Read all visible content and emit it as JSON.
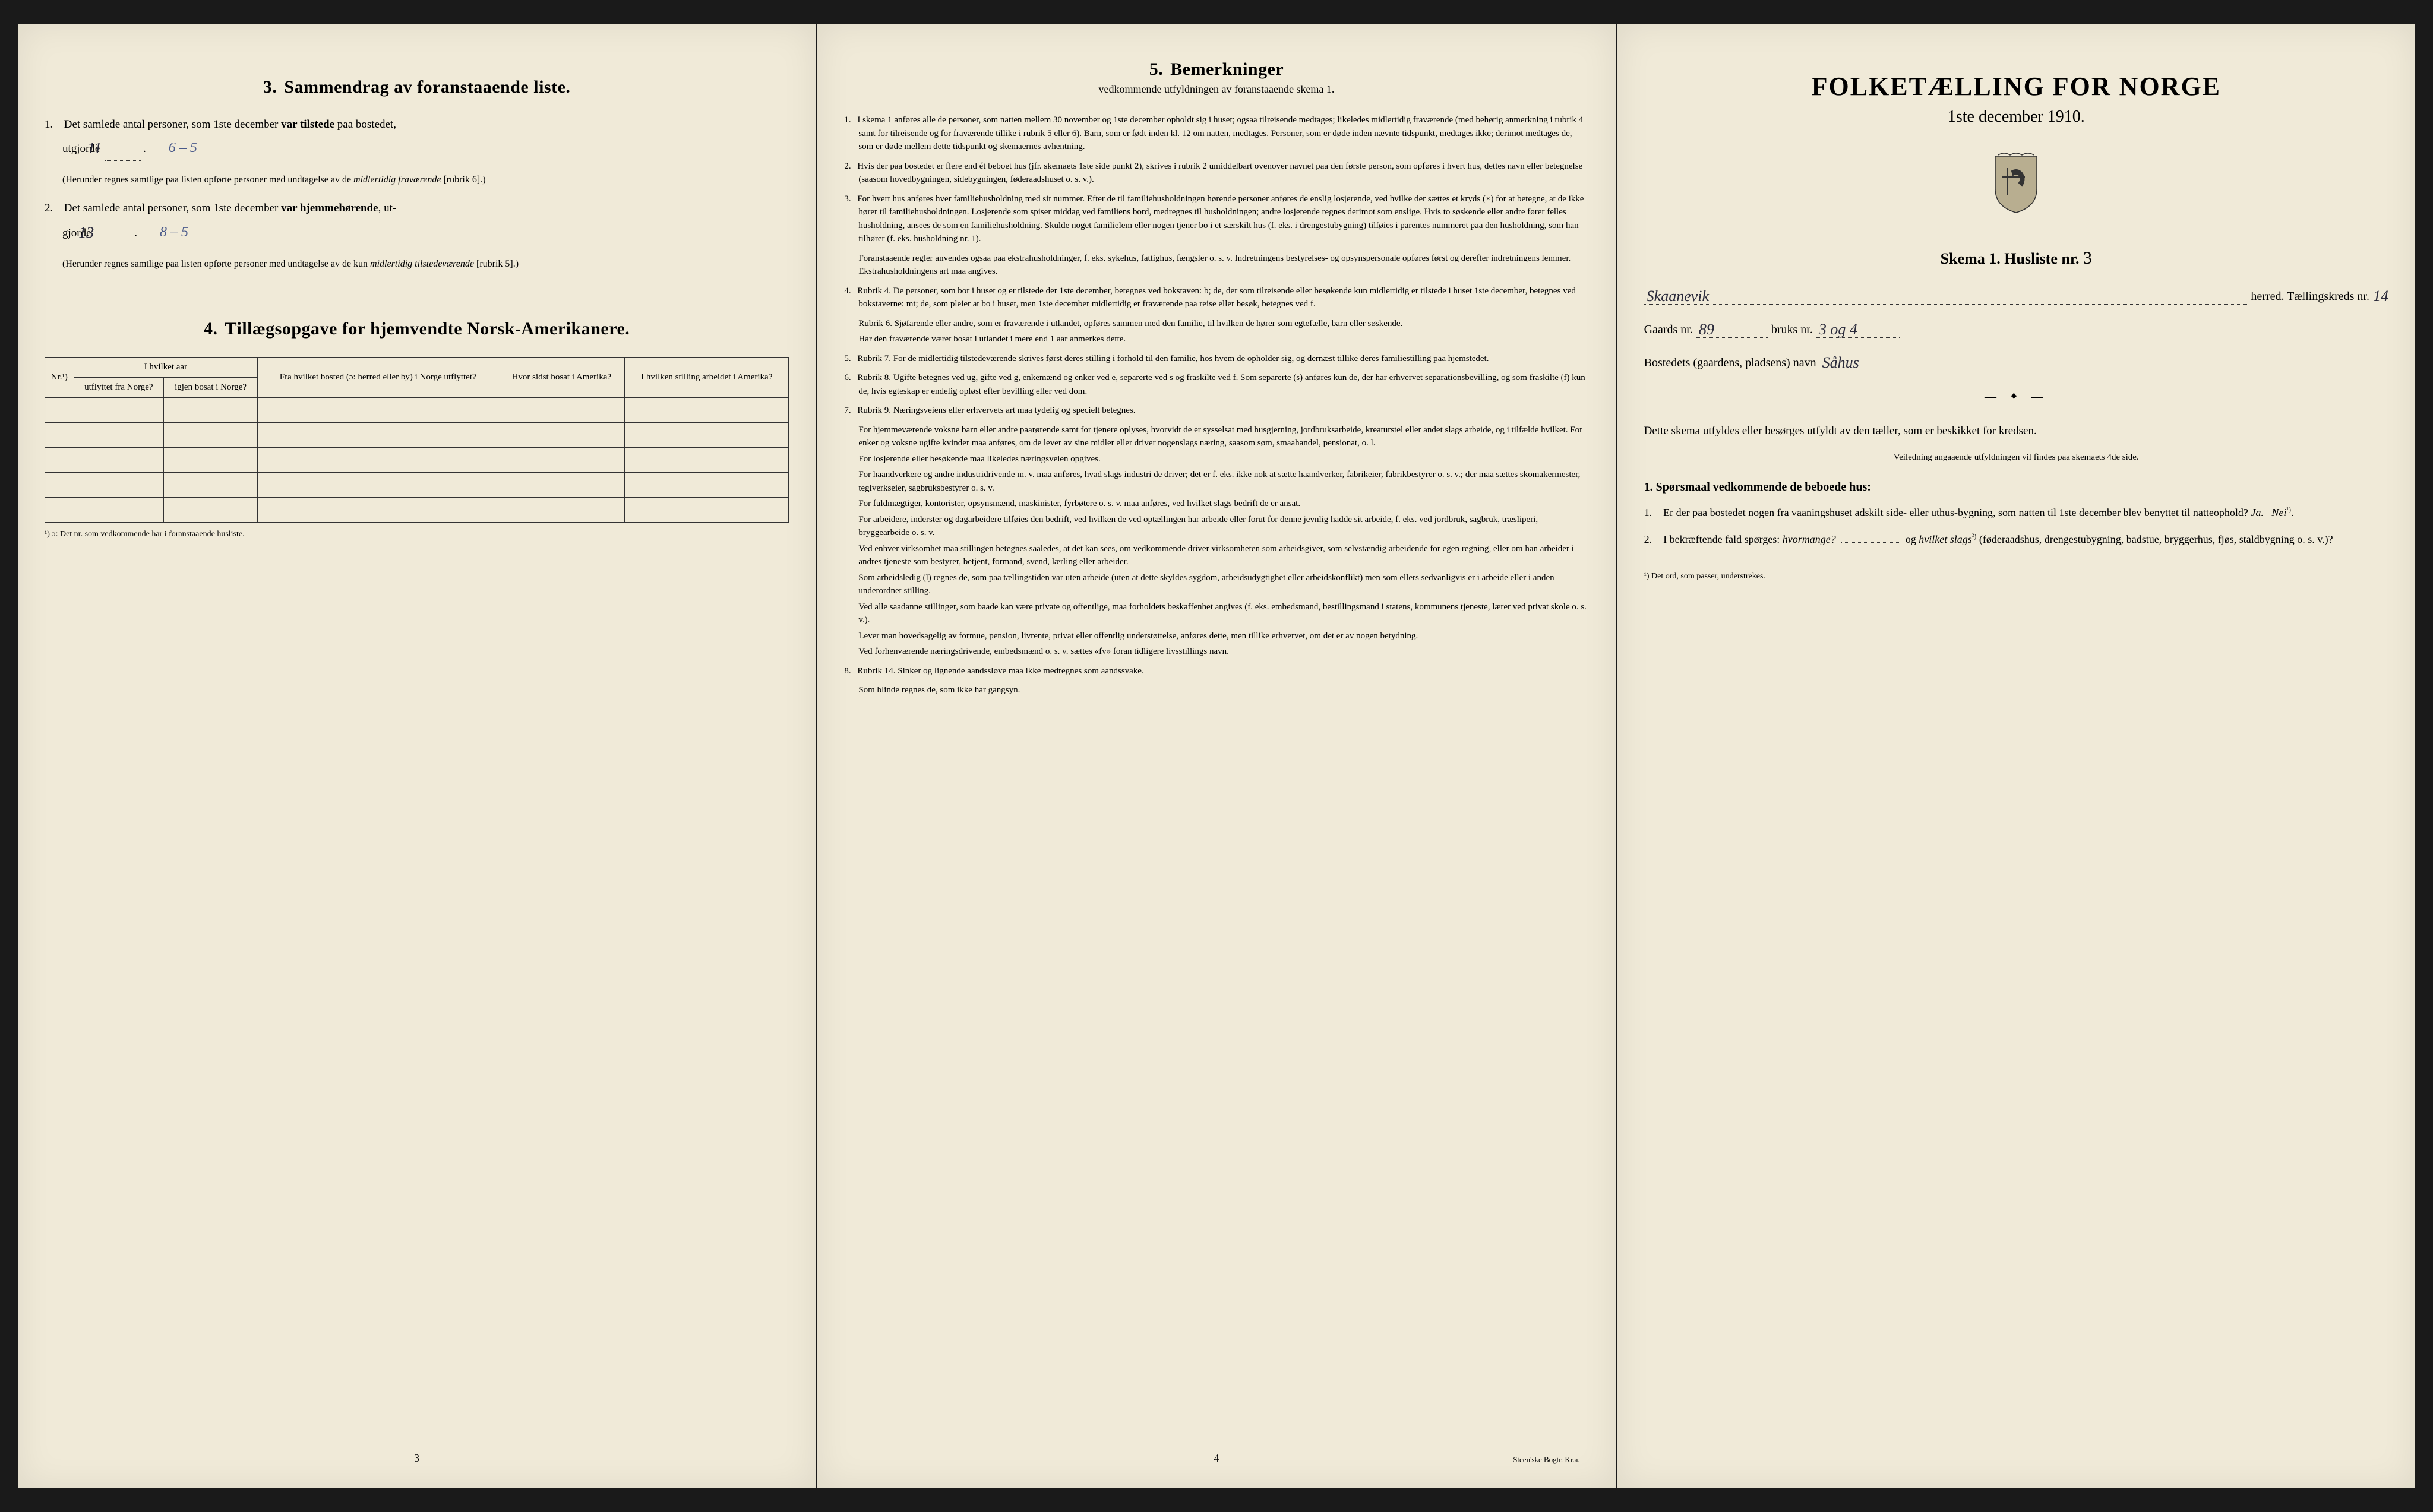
{
  "colors": {
    "paper": "#f0ead8",
    "ink": "#1a1a1a",
    "hand_ink": "#2a2a3a",
    "hand_blue": "#4a5a8a",
    "frame": "#1a1a1a"
  },
  "left": {
    "section3_num": "3.",
    "section3_title": "Sammendrag av foranstaaende liste.",
    "item1_n": "1.",
    "item1_text_a": "Det samlede antal personer, som 1ste december",
    "item1_bold": "var tilstede",
    "item1_text_b": "paa bostedet,",
    "item1_text_c": "utgjorde",
    "item1_value": "11",
    "item1_value2": "6 – 5",
    "item1_paren": "(Herunder regnes samtlige paa listen opførte personer med undtagelse av de ",
    "item1_paren_it": "midlertidig fraværende",
    "item1_paren_end": " [rubrik 6].)",
    "item2_n": "2.",
    "item2_text_a": "Det samlede antal personer, som 1ste december",
    "item2_bold": "var hjemmehørende",
    "item2_text_b": ", ut-",
    "item2_text_c": "gjorde",
    "item2_value": "13",
    "item2_value2": "8 – 5",
    "item2_paren": "(Herunder regnes samtlige paa listen opførte personer med undtagelse av de kun ",
    "item2_paren_it": "midlertidig tilstedeværende",
    "item2_paren_end": " [rubrik 5].)",
    "section4_num": "4.",
    "section4_title": "Tillægsopgave for hjemvendte Norsk-Amerikanere.",
    "table": {
      "col_nr": "Nr.¹)",
      "col_year_header": "I hvilket aar",
      "col_year_a": "utflyttet fra Norge?",
      "col_year_b": "igjen bosat i Norge?",
      "col_from": "Fra hvilket bosted (ɔ: herred eller by) i Norge utflyttet?",
      "col_where": "Hvor sidst bosat i Amerika?",
      "col_pos": "I hvilken stilling arbeidet i Amerika?",
      "empty_rows": 5
    },
    "table_footnote": "¹) ɔ: Det nr. som vedkommende har i foranstaaende husliste.",
    "page_num": "3"
  },
  "middle": {
    "section5_num": "5.",
    "section5_title": "Bemerkninger",
    "section5_sub": "vedkommende utfyldningen av foranstaaende skema 1.",
    "items": [
      {
        "n": "1.",
        "text": "I skema 1 anføres alle de personer, som natten mellem 30 november og 1ste december opholdt sig i huset; ogsaa tilreisende medtages; likeledes midlertidig fraværende (med behørig anmerkning i rubrik 4 samt for tilreisende og for fraværende tillike i rubrik 5 eller 6). Barn, som er født inden kl. 12 om natten, medtages. Personer, som er døde inden nævnte tidspunkt, medtages ikke; derimot medtages de, som er døde mellem dette tidspunkt og skemaernes avhentning."
      },
      {
        "n": "2.",
        "text": "Hvis der paa bostedet er flere end ét beboet hus (jfr. skemaets 1ste side punkt 2), skrives i rubrik 2 umiddelbart ovenover navnet paa den første person, som opføres i hvert hus, dettes navn eller betegnelse (saasom hovedbygningen, sidebygningen, føderaadshuset o. s. v.)."
      },
      {
        "n": "3.",
        "text": "For hvert hus anføres hver familiehusholdning med sit nummer. Efter de til familiehusholdningen hørende personer anføres de enslig losjerende, ved hvilke der sættes et kryds (×) for at betegne, at de ikke hører til familiehusholdningen. Losjerende som spiser middag ved familiens bord, medregnes til husholdningen; andre losjerende regnes derimot som enslige. Hvis to søskende eller andre fører felles husholdning, ansees de som en familiehusholdning. Skulde noget familielem eller nogen tjener bo i et særskilt hus (f. eks. i drengestubygning) tilføies i parentes nummeret paa den husholdning, som han tilhører (f. eks. husholdning nr. 1)."
      },
      {
        "n": "",
        "text": "Foranstaaende regler anvendes ogsaa paa ekstrahusholdninger, f. eks. sykehus, fattighus, fængsler o. s. v. Indretningens bestyrelses- og opsynspersonale opføres først og derefter indretningens lemmer. Ekstrahusholdningens art maa angives.",
        "indent": true
      },
      {
        "n": "4.",
        "text": "Rubrik 4. De personer, som bor i huset og er tilstede der 1ste december, betegnes ved bokstaven: b; de, der som tilreisende eller besøkende kun midlertidig er tilstede i huset 1ste december, betegnes ved bokstaverne: mt; de, som pleier at bo i huset, men 1ste december midlertidig er fraværende paa reise eller besøk, betegnes ved f."
      },
      {
        "n": "",
        "text": "Rubrik 6. Sjøfarende eller andre, som er fraværende i utlandet, opføres sammen med den familie, til hvilken de hører som egtefælle, barn eller søskende.",
        "indent": true
      },
      {
        "n": "",
        "text": "Har den fraværende været bosat i utlandet i mere end 1 aar anmerkes dette.",
        "indent": true
      },
      {
        "n": "5.",
        "text": "Rubrik 7. For de midlertidig tilstedeværende skrives først deres stilling i forhold til den familie, hos hvem de opholder sig, og dernæst tillike deres familiestilling paa hjemstedet."
      },
      {
        "n": "6.",
        "text": "Rubrik 8. Ugifte betegnes ved ug, gifte ved g, enkemænd og enker ved e, separerte ved s og fraskilte ved f. Som separerte (s) anføres kun de, der har erhvervet separationsbevilling, og som fraskilte (f) kun de, hvis egteskap er endelig opløst efter bevilling eller ved dom."
      },
      {
        "n": "7.",
        "text": "Rubrik 9. Næringsveiens eller erhvervets art maa tydelig og specielt betegnes."
      },
      {
        "n": "",
        "text": "For hjemmeværende voksne barn eller andre paarørende samt for tjenere oplyses, hvorvidt de er sysselsat med husgjerning, jordbruksarbeide, kreaturstel eller andet slags arbeide, og i tilfælde hvilket. For enker og voksne ugifte kvinder maa anføres, om de lever av sine midler eller driver nogenslags næring, saasom søm, smaahandel, pensionat, o. l.",
        "indent": true
      },
      {
        "n": "",
        "text": "For losjerende eller besøkende maa likeledes næringsveien opgives.",
        "indent": true
      },
      {
        "n": "",
        "text": "For haandverkere og andre industridrivende m. v. maa anføres, hvad slags industri de driver; det er f. eks. ikke nok at sætte haandverker, fabrikeier, fabrikbestyrer o. s. v.; der maa sættes skomakermester, teglverkseier, sagbruksbestyrer o. s. v.",
        "indent": true
      },
      {
        "n": "",
        "text": "For fuldmægtiger, kontorister, opsynsmænd, maskinister, fyrbøtere o. s. v. maa anføres, ved hvilket slags bedrift de er ansat.",
        "indent": true
      },
      {
        "n": "",
        "text": "For arbeidere, inderster og dagarbeidere tilføies den bedrift, ved hvilken de ved optællingen har arbeide eller forut for denne jevnlig hadde sit arbeide, f. eks. ved jordbruk, sagbruk, træsliperi, bryggearbeide o. s. v.",
        "indent": true
      },
      {
        "n": "",
        "text": "Ved enhver virksomhet maa stillingen betegnes saaledes, at det kan sees, om vedkommende driver virksomheten som arbeidsgiver, som selvstændig arbeidende for egen regning, eller om han arbeider i andres tjeneste som bestyrer, betjent, formand, svend, lærling eller arbeider.",
        "indent": true
      },
      {
        "n": "",
        "text": "Som arbeidsledig (l) regnes de, som paa tællingstiden var uten arbeide (uten at dette skyldes sygdom, arbeidsudygtighet eller arbeidskonflikt) men som ellers sedvanligvis er i arbeide eller i anden underordnet stilling.",
        "indent": true
      },
      {
        "n": "",
        "text": "Ved alle saadanne stillinger, som baade kan være private og offentlige, maa forholdets beskaffenhet angives (f. eks. embedsmand, bestillingsmand i statens, kommunens tjeneste, lærer ved privat skole o. s. v.).",
        "indent": true
      },
      {
        "n": "",
        "text": "Lever man hovedsagelig av formue, pension, livrente, privat eller offentlig understøttelse, anføres dette, men tillike erhvervet, om det er av nogen betydning.",
        "indent": true
      },
      {
        "n": "",
        "text": "Ved forhenværende næringsdrivende, embedsmænd o. s. v. sættes «fv» foran tidligere livsstillings navn.",
        "indent": true
      },
      {
        "n": "8.",
        "text": "Rubrik 14. Sinker og lignende aandssløve maa ikke medregnes som aandssvake."
      },
      {
        "n": "",
        "text": "Som blinde regnes de, som ikke har gangsyn.",
        "indent": true
      }
    ],
    "page_num": "4",
    "printer": "Steen'ske Bogtr. Kr.a."
  },
  "right": {
    "main_title": "FOLKETÆLLING FOR NORGE",
    "date": "1ste december 1910.",
    "skema_label": "Skema 1.   Husliste nr.",
    "husliste_nr": "3",
    "herred_value": "Skaanevik",
    "herred_label": "herred.   Tællingskreds nr.",
    "kreds_nr": "14",
    "gaards_label": "Gaards nr.",
    "gaards_value": "89",
    "bruks_label": "bruks nr.",
    "bruks_value": "3 og 4",
    "bosted_label": "Bostedets (gaardens, pladsens) navn",
    "bosted_value": "Såhus",
    "body1": "Dette skema utfyldes eller besørges utfyldt av den tæller, som er beskikket for kredsen.",
    "body1_small": "Veiledning angaaende utfyldningen vil findes paa skemaets 4de side.",
    "q_title": "1. Spørsmaal vedkommende de beboede hus:",
    "q1_n": "1.",
    "q1": "Er der paa bostedet nogen fra vaaningshuset adskilt side- eller uthus-bygning, som natten til 1ste december blev benyttet til natteophold?   ",
    "q1_ja": "Ja.",
    "q1_nei": "Nei",
    "q2_n": "2.",
    "q2a": "I bekræftende fald spørges: ",
    "q2_it1": "hvormange?",
    "q2b": " og ",
    "q2_it2": "hvilket slags",
    "q2c": " (føderaadshus, drengestubygning, badstue, bryggerhus, fjøs, staldbygning o. s. v.)?",
    "footnote": "¹) Det ord, som passer, understrekes."
  }
}
